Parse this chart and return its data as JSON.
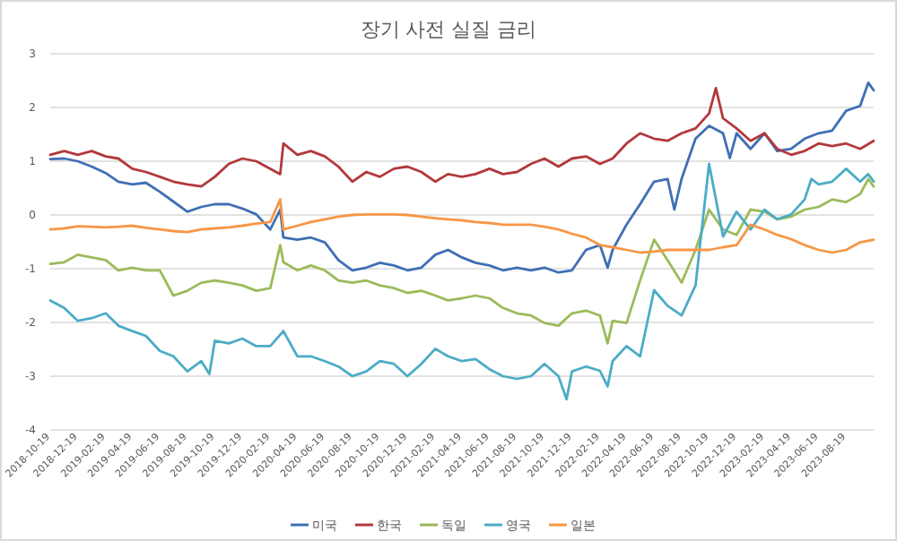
{
  "chart_data": {
    "type": "line",
    "title": "장기 사전 실질 금리",
    "ylim": [
      -4,
      3
    ],
    "yticks": [
      -4,
      -3,
      -2,
      -1,
      0,
      1,
      2,
      3
    ],
    "grid": "y",
    "legend": "bottom",
    "line_style": "solid",
    "marker": "none",
    "xlim": [
      "2018-10-19",
      "2023-10-19"
    ],
    "xticks": [
      "2018-10-19",
      "2018-12-19",
      "2019-02-19",
      "2019-04-19",
      "2019-06-19",
      "2019-08-19",
      "2019-10-19",
      "2019-12-19",
      "2020-02-19",
      "2020-04-19",
      "2020-06-19",
      "2020-08-19",
      "2020-10-19",
      "2020-12-19",
      "2021-02-19",
      "2021-04-19",
      "2021-06-19",
      "2021-08-19",
      "2021-10-19",
      "2021-12-19",
      "2022-02-19",
      "2022-04-19",
      "2022-06-19",
      "2022-08-19",
      "2022-10-19",
      "2022-12-19",
      "2023-02-19",
      "2023-04-19",
      "2023-06-19",
      "2023-08-19"
    ],
    "series": [
      {
        "name": "미국",
        "color": "#3f6fb5",
        "x": [
          "2018-10-19",
          "2018-11-19",
          "2018-12-19",
          "2019-01-19",
          "2019-02-19",
          "2019-03-19",
          "2019-04-19",
          "2019-05-19",
          "2019-06-19",
          "2019-07-19",
          "2019-08-19",
          "2019-09-19",
          "2019-10-19",
          "2019-11-19",
          "2019-12-19",
          "2020-01-19",
          "2020-02-19",
          "2020-03-12",
          "2020-03-19",
          "2020-04-19",
          "2020-05-19",
          "2020-06-19",
          "2020-07-19",
          "2020-08-19",
          "2020-09-19",
          "2020-10-19",
          "2020-11-19",
          "2020-12-19",
          "2021-01-19",
          "2021-02-19",
          "2021-03-19",
          "2021-04-19",
          "2021-05-19",
          "2021-06-19",
          "2021-07-19",
          "2021-08-19",
          "2021-09-19",
          "2021-10-19",
          "2021-11-19",
          "2021-12-19",
          "2022-01-19",
          "2022-02-19",
          "2022-03-08",
          "2022-03-19",
          "2022-04-19",
          "2022-05-19",
          "2022-06-19",
          "2022-07-19",
          "2022-08-03",
          "2022-08-19",
          "2022-09-19",
          "2022-10-19",
          "2022-11-19",
          "2022-12-04",
          "2022-12-19",
          "2023-01-19",
          "2023-02-19",
          "2023-03-19",
          "2023-04-19",
          "2023-05-19",
          "2023-06-19",
          "2023-07-19",
          "2023-08-19",
          "2023-09-19",
          "2023-10-07",
          "2023-10-19"
        ],
        "values": [
          1.04,
          1.05,
          1.0,
          0.9,
          0.78,
          0.62,
          0.57,
          0.6,
          0.43,
          0.25,
          0.06,
          0.15,
          0.2,
          0.2,
          0.12,
          0.01,
          -0.27,
          0.1,
          -0.42,
          -0.46,
          -0.42,
          -0.51,
          -0.84,
          -1.03,
          -0.98,
          -0.89,
          -0.94,
          -1.03,
          -0.98,
          -0.74,
          -0.65,
          -0.79,
          -0.89,
          -0.94,
          -1.03,
          -0.98,
          -1.03,
          -0.98,
          -1.07,
          -1.03,
          -0.65,
          -0.56,
          -0.98,
          -0.65,
          -0.18,
          0.2,
          0.62,
          0.67,
          0.1,
          0.67,
          1.42,
          1.66,
          1.52,
          1.06,
          1.52,
          1.23,
          1.52,
          1.19,
          1.23,
          1.42,
          1.52,
          1.57,
          1.94,
          2.03,
          2.46,
          2.32
        ]
      },
      {
        "name": "한국",
        "color": "#b3383c",
        "x": [
          "2018-10-19",
          "2018-11-19",
          "2018-12-19",
          "2019-01-19",
          "2019-02-19",
          "2019-03-19",
          "2019-04-19",
          "2019-05-19",
          "2019-06-19",
          "2019-07-19",
          "2019-08-19",
          "2019-09-19",
          "2019-10-19",
          "2019-11-19",
          "2019-12-19",
          "2020-01-19",
          "2020-02-19",
          "2020-03-12",
          "2020-03-19",
          "2020-04-19",
          "2020-05-19",
          "2020-06-19",
          "2020-07-19",
          "2020-08-19",
          "2020-09-19",
          "2020-10-19",
          "2020-11-19",
          "2020-12-19",
          "2021-01-19",
          "2021-02-19",
          "2021-03-19",
          "2021-04-19",
          "2021-05-19",
          "2021-06-19",
          "2021-07-19",
          "2021-08-19",
          "2021-09-19",
          "2021-10-19",
          "2021-11-19",
          "2021-12-19",
          "2022-01-19",
          "2022-02-19",
          "2022-03-19",
          "2022-04-19",
          "2022-05-19",
          "2022-06-19",
          "2022-07-19",
          "2022-08-19",
          "2022-09-19",
          "2022-10-19",
          "2022-11-03",
          "2022-11-19",
          "2022-12-19",
          "2023-01-19",
          "2023-02-19",
          "2023-03-19",
          "2023-04-19",
          "2023-05-19",
          "2023-06-19",
          "2023-07-19",
          "2023-08-19",
          "2023-09-19",
          "2023-10-19"
        ],
        "values": [
          1.12,
          1.19,
          1.12,
          1.19,
          1.09,
          1.05,
          0.86,
          0.8,
          0.71,
          0.62,
          0.57,
          0.53,
          0.71,
          0.95,
          1.05,
          1.0,
          0.86,
          0.76,
          1.33,
          1.12,
          1.19,
          1.09,
          0.9,
          0.62,
          0.8,
          0.71,
          0.86,
          0.9,
          0.8,
          0.62,
          0.76,
          0.71,
          0.76,
          0.86,
          0.76,
          0.8,
          0.95,
          1.05,
          0.9,
          1.05,
          1.09,
          0.95,
          1.05,
          1.33,
          1.52,
          1.42,
          1.38,
          1.52,
          1.61,
          1.89,
          2.36,
          1.8,
          1.61,
          1.38,
          1.52,
          1.23,
          1.12,
          1.19,
          1.33,
          1.28,
          1.33,
          1.23,
          1.38
        ]
      },
      {
        "name": "독일",
        "color": "#9bbb59",
        "x": [
          "2018-10-19",
          "2018-11-19",
          "2018-12-19",
          "2019-01-19",
          "2019-02-19",
          "2019-03-19",
          "2019-04-19",
          "2019-05-19",
          "2019-06-19",
          "2019-07-19",
          "2019-08-19",
          "2019-09-19",
          "2019-10-19",
          "2019-11-19",
          "2019-12-19",
          "2020-01-19",
          "2020-02-19",
          "2020-03-12",
          "2020-03-19",
          "2020-04-19",
          "2020-05-19",
          "2020-06-19",
          "2020-07-19",
          "2020-08-19",
          "2020-09-19",
          "2020-10-19",
          "2020-11-19",
          "2020-12-19",
          "2021-01-19",
          "2021-02-19",
          "2021-03-19",
          "2021-04-19",
          "2021-05-19",
          "2021-06-19",
          "2021-07-19",
          "2021-08-19",
          "2021-09-19",
          "2021-10-19",
          "2021-11-19",
          "2021-12-19",
          "2022-01-19",
          "2022-02-19",
          "2022-03-08",
          "2022-03-19",
          "2022-04-19",
          "2022-05-19",
          "2022-06-19",
          "2022-07-19",
          "2022-08-19",
          "2022-09-19",
          "2022-10-19",
          "2022-11-19",
          "2022-12-19",
          "2023-01-19",
          "2023-02-19",
          "2023-03-19",
          "2023-04-19",
          "2023-05-19",
          "2023-06-19",
          "2023-07-19",
          "2023-08-19",
          "2023-09-19",
          "2023-10-07",
          "2023-10-19"
        ],
        "values": [
          -0.91,
          -0.88,
          -0.74,
          -0.79,
          -0.84,
          -1.03,
          -0.98,
          -1.03,
          -1.03,
          -1.5,
          -1.41,
          -1.26,
          -1.22,
          -1.26,
          -1.31,
          -1.41,
          -1.36,
          -0.56,
          -0.88,
          -1.03,
          -0.94,
          -1.03,
          -1.22,
          -1.26,
          -1.22,
          -1.31,
          -1.36,
          -1.45,
          -1.41,
          -1.5,
          -1.59,
          -1.55,
          -1.5,
          -1.55,
          -1.73,
          -1.83,
          -1.87,
          -2.01,
          -2.06,
          -1.83,
          -1.78,
          -1.87,
          -2.39,
          -1.97,
          -2.01,
          -1.22,
          -0.46,
          -0.84,
          -1.26,
          -0.65,
          0.1,
          -0.27,
          -0.37,
          0.1,
          0.06,
          -0.08,
          -0.03,
          0.1,
          0.15,
          0.29,
          0.24,
          0.39,
          0.67,
          0.53
        ]
      },
      {
        "name": "영국",
        "color": "#4bacc6",
        "x": [
          "2018-10-19",
          "2018-11-19",
          "2018-12-19",
          "2019-01-19",
          "2019-02-19",
          "2019-03-19",
          "2019-04-19",
          "2019-05-19",
          "2019-06-19",
          "2019-07-19",
          "2019-08-19",
          "2019-09-19",
          "2019-10-07",
          "2019-10-19",
          "2019-11-19",
          "2019-12-19",
          "2020-01-19",
          "2020-02-19",
          "2020-03-19",
          "2020-04-19",
          "2020-05-19",
          "2020-06-19",
          "2020-07-19",
          "2020-08-19",
          "2020-09-19",
          "2020-10-19",
          "2020-11-19",
          "2020-12-19",
          "2021-01-19",
          "2021-02-19",
          "2021-03-19",
          "2021-04-19",
          "2021-05-19",
          "2021-06-19",
          "2021-07-19",
          "2021-08-19",
          "2021-09-19",
          "2021-10-19",
          "2021-11-19",
          "2021-12-07",
          "2021-12-19",
          "2022-01-19",
          "2022-02-19",
          "2022-03-08",
          "2022-03-19",
          "2022-04-19",
          "2022-05-19",
          "2022-06-19",
          "2022-07-19",
          "2022-08-19",
          "2022-09-19",
          "2022-10-19",
          "2022-11-19",
          "2022-12-19",
          "2023-01-19",
          "2023-02-19",
          "2023-03-19",
          "2023-04-19",
          "2023-05-19",
          "2023-06-03",
          "2023-06-19",
          "2023-07-19",
          "2023-08-19",
          "2023-09-19",
          "2023-10-07",
          "2023-10-19"
        ],
        "values": [
          -1.59,
          -1.73,
          -1.97,
          -1.92,
          -1.83,
          -2.06,
          -2.16,
          -2.25,
          -2.53,
          -2.63,
          -2.91,
          -2.72,
          -2.96,
          -2.34,
          -2.39,
          -2.3,
          -2.44,
          -2.44,
          -2.16,
          -2.63,
          -2.63,
          -2.72,
          -2.82,
          -3.0,
          -2.91,
          -2.72,
          -2.77,
          -3.0,
          -2.77,
          -2.49,
          -2.63,
          -2.72,
          -2.68,
          -2.87,
          -3.0,
          -3.05,
          -3.0,
          -2.77,
          -3.0,
          -3.43,
          -2.91,
          -2.82,
          -2.9,
          -3.19,
          -2.72,
          -2.44,
          -2.63,
          -1.4,
          -1.69,
          -1.87,
          -1.31,
          0.95,
          -0.4,
          0.06,
          -0.27,
          0.1,
          -0.08,
          0.01,
          0.29,
          0.67,
          0.57,
          0.62,
          0.86,
          0.62,
          0.76,
          0.62
        ]
      },
      {
        "name": "일본",
        "color": "#f79646",
        "x": [
          "2018-10-19",
          "2018-11-19",
          "2018-12-19",
          "2019-01-19",
          "2019-02-19",
          "2019-03-19",
          "2019-04-19",
          "2019-05-19",
          "2019-06-19",
          "2019-07-19",
          "2019-08-19",
          "2019-09-19",
          "2019-10-19",
          "2019-11-19",
          "2019-12-19",
          "2020-01-19",
          "2020-02-19",
          "2020-03-12",
          "2020-03-19",
          "2020-04-19",
          "2020-05-19",
          "2020-06-19",
          "2020-07-19",
          "2020-08-19",
          "2020-09-19",
          "2020-10-19",
          "2020-11-19",
          "2020-12-19",
          "2021-01-19",
          "2021-02-19",
          "2021-03-19",
          "2021-04-19",
          "2021-05-19",
          "2021-06-19",
          "2021-07-19",
          "2021-08-19",
          "2021-09-19",
          "2021-10-19",
          "2021-11-19",
          "2021-12-19",
          "2022-01-19",
          "2022-02-19",
          "2022-03-19",
          "2022-04-19",
          "2022-05-19",
          "2022-06-19",
          "2022-07-19",
          "2022-08-19",
          "2022-09-19",
          "2022-10-19",
          "2022-11-19",
          "2022-12-19",
          "2023-01-19",
          "2023-02-19",
          "2023-03-19",
          "2023-04-19",
          "2023-05-19",
          "2023-06-19",
          "2023-07-19",
          "2023-08-19",
          "2023-09-19",
          "2023-10-19"
        ],
        "values": [
          -0.27,
          -0.25,
          -0.21,
          -0.22,
          -0.23,
          -0.22,
          -0.2,
          -0.24,
          -0.27,
          -0.3,
          -0.32,
          -0.27,
          -0.25,
          -0.23,
          -0.2,
          -0.16,
          -0.13,
          0.29,
          -0.27,
          -0.2,
          -0.13,
          -0.08,
          -0.03,
          0.0,
          0.01,
          0.01,
          0.01,
          0.0,
          -0.03,
          -0.06,
          -0.08,
          -0.1,
          -0.13,
          -0.15,
          -0.18,
          -0.18,
          -0.18,
          -0.22,
          -0.27,
          -0.35,
          -0.42,
          -0.56,
          -0.6,
          -0.65,
          -0.7,
          -0.68,
          -0.65,
          -0.65,
          -0.65,
          -0.65,
          -0.6,
          -0.56,
          -0.18,
          -0.27,
          -0.37,
          -0.45,
          -0.56,
          -0.65,
          -0.7,
          -0.65,
          -0.51,
          -0.46
        ]
      }
    ]
  }
}
